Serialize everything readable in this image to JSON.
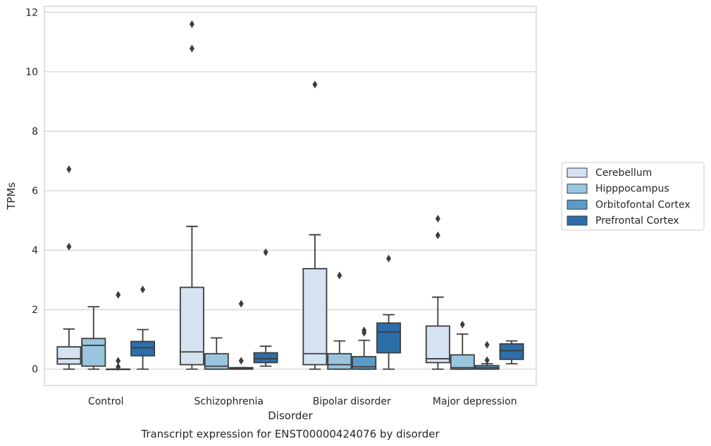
{
  "chart_data": {
    "type": "boxplot",
    "title": "Transcript expression for ENST00000424076 by disorder",
    "xlabel": "Disorder",
    "ylabel": "TPMs",
    "ylim": [
      -0.55,
      12.2
    ],
    "yticks": [
      "0",
      "2",
      "4",
      "6",
      "8",
      "10",
      "12"
    ],
    "grid": true,
    "legend_position": "right",
    "categories": [
      "Control",
      "Schizophrenia",
      "Bipolar disorder",
      "Major depression"
    ],
    "series": [
      {
        "name": "Cerebellum",
        "color": "#d4e2f1",
        "boxes": [
          {
            "whislo": 0.0,
            "q1": 0.17,
            "med": 0.35,
            "q3": 0.75,
            "whishi": 1.35,
            "fliers": [
              4.12,
              6.72
            ]
          },
          {
            "whislo": 0.0,
            "q1": 0.15,
            "med": 0.58,
            "q3": 2.75,
            "whishi": 4.8,
            "fliers": [
              10.78,
              11.6
            ]
          },
          {
            "whislo": 0.0,
            "q1": 0.15,
            "med": 0.52,
            "q3": 3.38,
            "whishi": 4.52,
            "fliers": [
              9.57
            ]
          },
          {
            "whislo": 0.0,
            "q1": 0.22,
            "med": 0.35,
            "q3": 1.45,
            "whishi": 2.42,
            "fliers": [
              4.5,
              5.06
            ]
          }
        ]
      },
      {
        "name": "Hipppocampus",
        "color": "#9ac5de",
        "boxes": [
          {
            "whislo": 0.0,
            "q1": 0.1,
            "med": 0.8,
            "q3": 1.03,
            "whishi": 2.1,
            "fliers": []
          },
          {
            "whislo": 0.0,
            "q1": 0.0,
            "med": 0.1,
            "q3": 0.52,
            "whishi": 1.05,
            "fliers": []
          },
          {
            "whislo": 0.0,
            "q1": 0.0,
            "med": 0.15,
            "q3": 0.52,
            "whishi": 0.95,
            "fliers": [
              3.15
            ]
          },
          {
            "whislo": 0.0,
            "q1": 0.0,
            "med": 0.05,
            "q3": 0.48,
            "whishi": 1.18,
            "fliers": [
              1.5
            ]
          }
        ]
      },
      {
        "name": "Orbitofontal Cortex",
        "color": "#5a9cc8",
        "boxes": [
          {
            "whislo": 0.0,
            "q1": 0.0,
            "med": 0.0,
            "q3": 0.0,
            "whishi": 0.0,
            "fliers": [
              0.08,
              0.28,
              2.5
            ]
          },
          {
            "whislo": 0.0,
            "q1": 0.0,
            "med": 0.02,
            "q3": 0.05,
            "whishi": 0.05,
            "fliers": [
              0.28,
              2.2
            ]
          },
          {
            "whislo": 0.0,
            "q1": 0.0,
            "med": 0.08,
            "q3": 0.42,
            "whishi": 0.97,
            "fliers": [
              1.22,
              1.3
            ]
          },
          {
            "whislo": 0.0,
            "q1": 0.0,
            "med": 0.05,
            "q3": 0.12,
            "whishi": 0.18,
            "fliers": [
              0.3,
              0.82
            ]
          }
        ]
      },
      {
        "name": "Prefrontal Cortex",
        "color": "#2d6ea9",
        "boxes": [
          {
            "whislo": 0.0,
            "q1": 0.45,
            "med": 0.72,
            "q3": 0.93,
            "whishi": 1.33,
            "fliers": [
              2.68
            ]
          },
          {
            "whislo": 0.1,
            "q1": 0.22,
            "med": 0.35,
            "q3": 0.55,
            "whishi": 0.77,
            "fliers": [
              3.93
            ]
          },
          {
            "whislo": 0.0,
            "q1": 0.55,
            "med": 1.25,
            "q3": 1.55,
            "whishi": 1.83,
            "fliers": [
              3.72
            ]
          },
          {
            "whislo": 0.18,
            "q1": 0.33,
            "med": 0.62,
            "q3": 0.85,
            "whishi": 0.95,
            "fliers": []
          }
        ]
      }
    ]
  }
}
